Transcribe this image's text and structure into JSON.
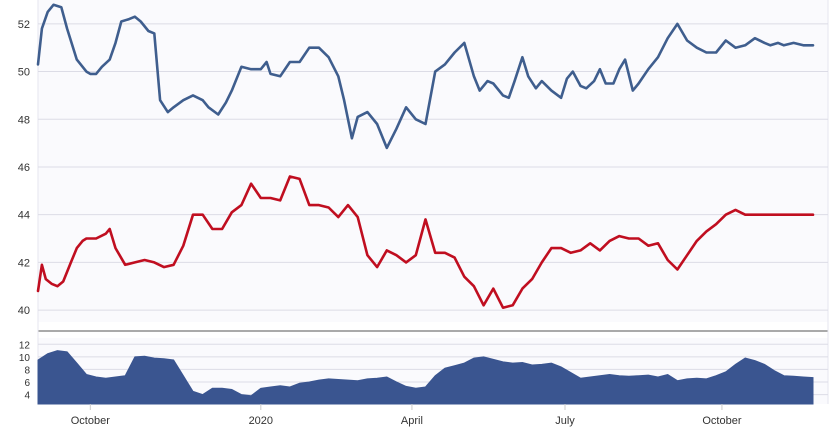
{
  "chart_data": [
    {
      "type": "line",
      "title": "",
      "xlabel": "",
      "ylabel": "",
      "ylim": [
        39.5,
        53
      ],
      "yticks": [
        "40",
        "42",
        "44",
        "46",
        "48",
        "50",
        "52"
      ],
      "grid": true,
      "legend": "none",
      "series": [
        {
          "color": "#3f5e8e",
          "x": [
            0,
            2,
            5,
            8,
            12,
            15,
            20,
            25,
            27,
            30,
            33,
            37,
            40,
            43,
            47,
            50,
            53,
            57,
            60,
            63,
            67,
            70,
            75,
            80,
            85,
            88,
            93,
            97,
            100,
            105,
            110,
            115,
            118,
            120,
            125,
            130,
            135,
            140,
            145,
            150,
            155,
            158,
            162,
            165,
            170,
            175,
            180,
            185,
            190,
            195,
            200,
            205,
            210,
            215,
            220,
            225,
            228,
            232,
            235,
            240,
            243,
            246,
            250,
            253,
            257,
            260,
            265,
            270,
            273,
            276,
            280,
            283,
            287,
            290,
            293,
            297,
            300,
            303,
            307,
            310,
            315,
            320,
            325,
            330,
            335,
            340,
            345,
            350,
            355,
            360,
            365,
            370,
            375,
            378,
            382,
            385,
            390,
            395,
            400
          ],
          "values": [
            50.3,
            51.8,
            52.5,
            52.8,
            52.7,
            51.8,
            50.5,
            50.0,
            49.9,
            49.9,
            50.2,
            50.5,
            51.2,
            52.1,
            52.2,
            52.3,
            52.1,
            51.7,
            51.6,
            48.8,
            48.3,
            48.5,
            48.8,
            49.0,
            48.8,
            48.5,
            48.2,
            48.7,
            49.2,
            50.2,
            50.1,
            50.1,
            50.4,
            49.9,
            49.8,
            50.4,
            50.4,
            51.0,
            51.0,
            50.6,
            49.8,
            48.8,
            47.2,
            48.1,
            48.3,
            47.8,
            46.8,
            47.6,
            48.5,
            48.0,
            47.8,
            50.0,
            50.3,
            50.8,
            51.2,
            49.8,
            49.2,
            49.6,
            49.5,
            49.0,
            48.9,
            49.6,
            50.6,
            49.8,
            49.3,
            49.6,
            49.2,
            48.9,
            49.7,
            50.0,
            49.4,
            49.3,
            49.6,
            50.1,
            49.5,
            49.5,
            50.1,
            50.5,
            49.2,
            49.5,
            50.1,
            50.6,
            51.4,
            52.0,
            51.3,
            51.0,
            50.8,
            50.8,
            51.3,
            51.0,
            51.1,
            51.4,
            51.2,
            51.1,
            51.2,
            51.1,
            51.2,
            51.1,
            51.1
          ]
        },
        {
          "color": "#c00e20",
          "x": [
            0,
            2,
            4,
            7,
            10,
            13,
            17,
            20,
            23,
            25,
            30,
            35,
            37,
            40,
            45,
            50,
            55,
            60,
            65,
            70,
            75,
            80,
            85,
            90,
            95,
            100,
            105,
            110,
            115,
            120,
            125,
            130,
            135,
            140,
            145,
            150,
            155,
            160,
            165,
            170,
            175,
            180,
            185,
            190,
            195,
            200,
            205,
            210,
            215,
            220,
            225,
            230,
            235,
            240,
            245,
            250,
            255,
            260,
            265,
            270,
            275,
            280,
            285,
            290,
            295,
            300,
            305,
            310,
            315,
            320,
            325,
            330,
            335,
            340,
            345,
            350,
            355,
            360,
            365,
            370,
            375,
            380,
            385,
            390,
            395,
            400
          ],
          "values": [
            40.8,
            41.9,
            41.3,
            41.1,
            41.0,
            41.2,
            42.0,
            42.6,
            42.9,
            43.0,
            43.0,
            43.2,
            43.4,
            42.6,
            41.9,
            42.0,
            42.1,
            42.0,
            41.8,
            41.9,
            42.7,
            44.0,
            44.0,
            43.4,
            43.4,
            44.1,
            44.4,
            45.3,
            44.7,
            44.7,
            44.6,
            45.6,
            45.5,
            44.4,
            44.4,
            44.3,
            43.9,
            44.4,
            43.9,
            42.3,
            41.8,
            42.5,
            42.3,
            42.0,
            42.3,
            43.8,
            42.4,
            42.4,
            42.2,
            41.4,
            41.0,
            40.2,
            40.9,
            40.1,
            40.2,
            40.9,
            41.3,
            42.0,
            42.6,
            42.6,
            42.4,
            42.5,
            42.8,
            42.5,
            42.9,
            43.1,
            43.0,
            43.0,
            42.7,
            42.8,
            42.1,
            41.7,
            42.3,
            42.9,
            43.3,
            43.6,
            44.0,
            44.2,
            44.0,
            44.0,
            44.0,
            44.0,
            44.0,
            44.0,
            44.0,
            44.0
          ]
        }
      ]
    },
    {
      "type": "area",
      "title": "",
      "xlabel": "",
      "ylabel": "",
      "ylim": [
        2.5,
        13
      ],
      "yticks": [
        "4",
        "6",
        "8",
        "10",
        "12"
      ],
      "grid": true,
      "legend": "none",
      "x_tick_labels": [
        "October",
        "2020",
        "April",
        "July",
        "October"
      ],
      "x_tick_positions": [
        27,
        115,
        193,
        272,
        353
      ],
      "series": [
        {
          "color": "#3a5590",
          "x": [
            0,
            5,
            10,
            15,
            20,
            25,
            30,
            35,
            40,
            45,
            50,
            55,
            60,
            65,
            70,
            75,
            80,
            85,
            90,
            95,
            100,
            105,
            110,
            115,
            120,
            125,
            130,
            135,
            140,
            145,
            150,
            155,
            160,
            165,
            170,
            175,
            180,
            185,
            190,
            195,
            200,
            205,
            210,
            215,
            220,
            225,
            230,
            235,
            240,
            245,
            250,
            255,
            260,
            265,
            270,
            275,
            280,
            285,
            290,
            295,
            300,
            305,
            310,
            315,
            320,
            325,
            330,
            335,
            340,
            345,
            350,
            355,
            360,
            365,
            370,
            375,
            380,
            385,
            390,
            395,
            400
          ],
          "values": [
            9.5,
            10.5,
            11.0,
            10.8,
            9.0,
            7.2,
            6.8,
            6.6,
            6.8,
            7.0,
            10.0,
            10.1,
            9.8,
            9.7,
            9.5,
            7.0,
            4.5,
            4.0,
            5.0,
            5.0,
            4.8,
            4.0,
            3.8,
            5.0,
            5.2,
            5.4,
            5.2,
            5.8,
            6.0,
            6.3,
            6.5,
            6.4,
            6.3,
            6.2,
            6.5,
            6.6,
            6.8,
            6.0,
            5.3,
            5.0,
            5.2,
            7.0,
            8.2,
            8.6,
            9.0,
            9.8,
            10.0,
            9.6,
            9.2,
            9.0,
            9.1,
            8.7,
            8.8,
            9.0,
            8.4,
            7.5,
            6.6,
            6.8,
            7.0,
            7.2,
            7.0,
            6.9,
            7.0,
            7.1,
            6.8,
            7.2,
            6.2,
            6.5,
            6.6,
            6.5,
            7.0,
            7.6,
            8.8,
            9.8,
            9.4,
            8.8,
            7.8,
            7.0,
            6.9,
            6.8,
            6.7
          ]
        }
      ]
    }
  ]
}
